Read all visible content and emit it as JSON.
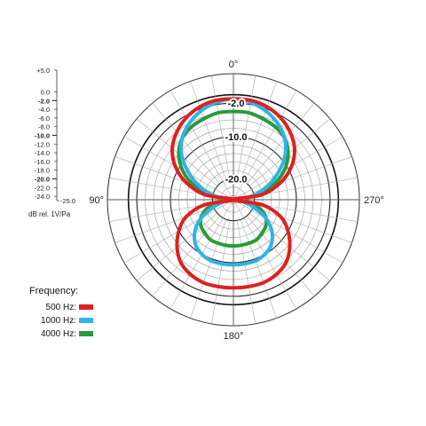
{
  "chart_data": {
    "type": "polar",
    "title": "",
    "angle_labels": [
      {
        "deg": 0,
        "text": "0°"
      },
      {
        "deg": 90,
        "text": "90°"
      },
      {
        "deg": 180,
        "text": "180°"
      },
      {
        "deg": 270,
        "text": "270°"
      }
    ],
    "radial_scale": {
      "min_db": -25.0,
      "max_db": 5.0,
      "ticks": [
        {
          "value": 5,
          "text": "+5.0",
          "major": false
        },
        {
          "value": 0,
          "text": "0.0",
          "major": false
        },
        {
          "value": -2,
          "text": "-2.0",
          "major": true
        },
        {
          "value": -4,
          "text": "-4.0",
          "major": false
        },
        {
          "value": -6,
          "text": "-6.0",
          "major": false
        },
        {
          "value": -8,
          "text": "-8.0",
          "major": false
        },
        {
          "value": -10,
          "text": "-10.0",
          "major": true
        },
        {
          "value": -12,
          "text": "-12.0",
          "major": false
        },
        {
          "value": -14,
          "text": "-14.0",
          "major": false
        },
        {
          "value": -16,
          "text": "-16.0",
          "major": false
        },
        {
          "value": -18,
          "text": "-18.0",
          "major": false
        },
        {
          "value": -20,
          "text": "-20.0",
          "major": true
        },
        {
          "value": -22,
          "text": "-22.0",
          "major": false
        },
        {
          "value": -24,
          "text": "-24.0",
          "major": false
        },
        {
          "value": -25,
          "text": "-25.0",
          "major": false
        }
      ],
      "unit": "dB rel. 1V/Pa"
    },
    "ring_labels": [
      "-2.0",
      "-10.0",
      "-20.0"
    ],
    "legend": {
      "title": "Frequency:",
      "entries": [
        {
          "label": "500 Hz:",
          "color": "#e0201f"
        },
        {
          "label": "1000 Hz:",
          "color": "#2fb3e8"
        },
        {
          "label": "4000 Hz:",
          "color": "#2a9a3a"
        }
      ]
    },
    "series": [
      {
        "color": "#e0201f",
        "angle_deg": [
          0,
          10,
          20,
          30,
          40,
          50,
          60,
          70,
          80,
          90,
          100,
          110,
          120,
          130,
          140,
          150,
          160,
          170,
          180
        ],
        "values_db": [
          -1,
          -1,
          -1.5,
          -2.5,
          -4,
          -6,
          -9,
          -13,
          -18,
          -25,
          -18,
          -13,
          -10,
          -7.5,
          -5.5,
          -4.5,
          -4,
          -4,
          -4
        ]
      },
      {
        "color": "#2fb3e8",
        "angle_deg": [
          0,
          10,
          20,
          30,
          40,
          50,
          60,
          70,
          80,
          90,
          100,
          110,
          120,
          130,
          140,
          150,
          160,
          170,
          180
        ],
        "values_db": [
          -1,
          -1.5,
          -2.5,
          -4,
          -6,
          -9,
          -13,
          -17,
          -21,
          -25,
          -23,
          -20,
          -16,
          -13,
          -11,
          -10,
          -9.5,
          -9.5,
          -9.5
        ]
      },
      {
        "color": "#2a9a3a",
        "angle_deg": [
          0,
          10,
          20,
          30,
          40,
          50,
          60,
          70,
          80,
          90,
          100,
          110,
          120,
          130,
          140,
          150,
          160,
          170,
          180
        ],
        "values_db": [
          -4,
          -4,
          -4.5,
          -5,
          -6,
          -8,
          -11,
          -15,
          -20,
          -25,
          -21,
          -18,
          -16,
          -15,
          -14.5,
          -14,
          -14,
          -14,
          -14
        ]
      }
    ]
  }
}
